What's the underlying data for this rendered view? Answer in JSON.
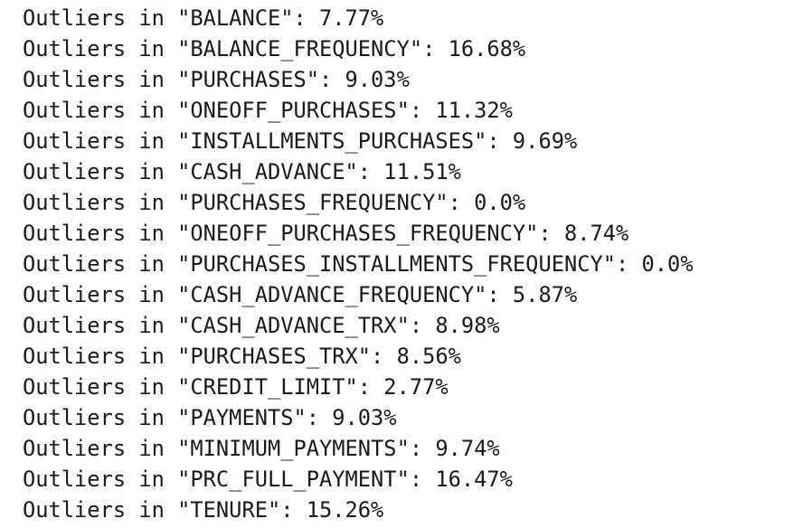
{
  "output": {
    "lines": [
      "Outliers in \"BALANCE\": 7.77%",
      "Outliers in \"BALANCE_FREQUENCY\": 16.68%",
      "Outliers in \"PURCHASES\": 9.03%",
      "Outliers in \"ONEOFF_PURCHASES\": 11.32%",
      "Outliers in \"INSTALLMENTS_PURCHASES\": 9.69%",
      "Outliers in \"CASH_ADVANCE\": 11.51%",
      "Outliers in \"PURCHASES_FREQUENCY\": 0.0%",
      "Outliers in \"ONEOFF_PURCHASES_FREQUENCY\": 8.74%",
      "Outliers in \"PURCHASES_INSTALLMENTS_FREQUENCY\": 0.0%",
      "Outliers in \"CASH_ADVANCE_FREQUENCY\": 5.87%",
      "Outliers in \"CASH_ADVANCE_TRX\": 8.98%",
      "Outliers in \"PURCHASES_TRX\": 8.56%",
      "Outliers in \"CREDIT_LIMIT\": 2.77%",
      "Outliers in \"PAYMENTS\": 9.03%",
      "Outliers in \"MINIMUM_PAYMENTS\": 9.74%",
      "Outliers in \"PRC_FULL_PAYMENT\": 16.47%",
      "Outliers in \"TENURE\": 15.26%"
    ]
  }
}
